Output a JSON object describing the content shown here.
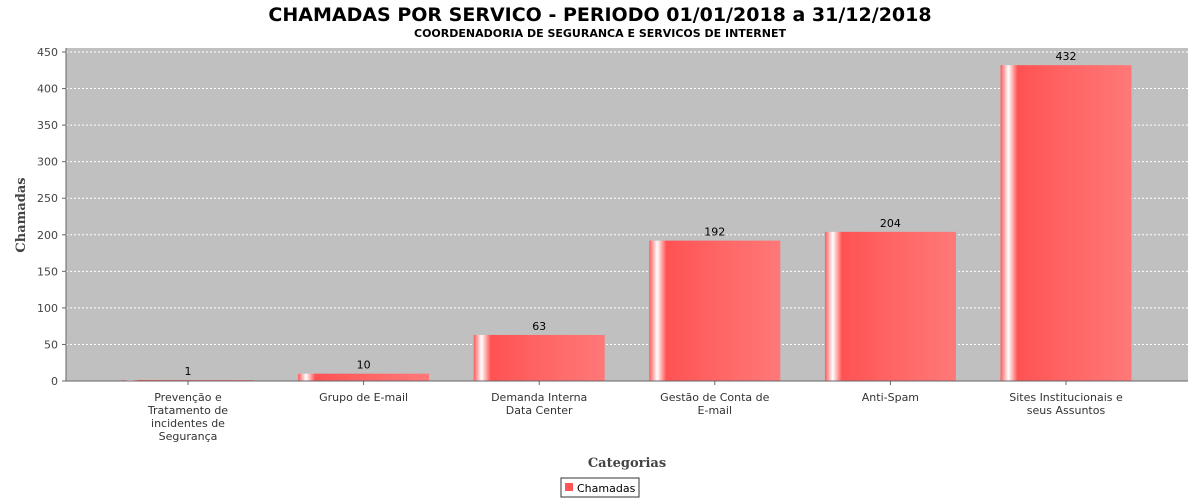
{
  "chart_data": {
    "type": "bar",
    "title": "CHAMADAS POR SERVICO - PERIODO 01/01/2018 a 31/12/2018",
    "subtitle": "COORDENADORIA DE SEGURANCA E SERVICOS DE INTERNET",
    "xlabel": "Categorias",
    "ylabel": "Chamadas",
    "ylim": [
      0,
      450
    ],
    "yticks": [
      0,
      50,
      100,
      150,
      200,
      250,
      300,
      350,
      400,
      450
    ],
    "grid": true,
    "legend_position": "bottom",
    "categories": [
      [
        "Prevenção e",
        "Tratamento de",
        "incidentes de",
        "Segurança"
      ],
      [
        "Grupo de E-mail"
      ],
      [
        "Demanda Interna",
        "Data Center"
      ],
      [
        "Gestão de Conta de",
        "E-mail"
      ],
      [
        "Anti-Spam"
      ],
      [
        "Sites Institucionais e",
        "seus Assuntos"
      ]
    ],
    "series": [
      {
        "name": "Chamadas",
        "values": [
          1,
          10,
          63,
          192,
          204,
          432
        ],
        "color": "#ff5555"
      }
    ],
    "plot_background": "#c0c0c0"
  }
}
